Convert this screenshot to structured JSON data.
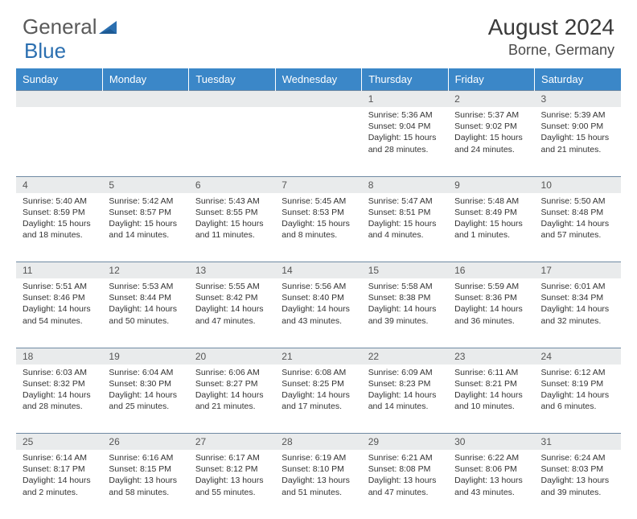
{
  "logo": {
    "part1": "General",
    "part2": "Blue"
  },
  "title": "August 2024",
  "location": "Borne, Germany",
  "dayHeaders": [
    "Sunday",
    "Monday",
    "Tuesday",
    "Wednesday",
    "Thursday",
    "Friday",
    "Saturday"
  ],
  "colors": {
    "header_bg": "#3b87c8",
    "header_text": "#ffffff",
    "daynum_bg": "#e9ebec",
    "border": "#6f8aa3",
    "logo_gray": "#5a5a5a",
    "logo_blue": "#2b6fb0"
  },
  "weeks": [
    [
      null,
      null,
      null,
      null,
      {
        "n": "1",
        "sr": "5:36 AM",
        "ss": "9:04 PM",
        "dl": "15 hours and 28 minutes."
      },
      {
        "n": "2",
        "sr": "5:37 AM",
        "ss": "9:02 PM",
        "dl": "15 hours and 24 minutes."
      },
      {
        "n": "3",
        "sr": "5:39 AM",
        "ss": "9:00 PM",
        "dl": "15 hours and 21 minutes."
      }
    ],
    [
      {
        "n": "4",
        "sr": "5:40 AM",
        "ss": "8:59 PM",
        "dl": "15 hours and 18 minutes."
      },
      {
        "n": "5",
        "sr": "5:42 AM",
        "ss": "8:57 PM",
        "dl": "15 hours and 14 minutes."
      },
      {
        "n": "6",
        "sr": "5:43 AM",
        "ss": "8:55 PM",
        "dl": "15 hours and 11 minutes."
      },
      {
        "n": "7",
        "sr": "5:45 AM",
        "ss": "8:53 PM",
        "dl": "15 hours and 8 minutes."
      },
      {
        "n": "8",
        "sr": "5:47 AM",
        "ss": "8:51 PM",
        "dl": "15 hours and 4 minutes."
      },
      {
        "n": "9",
        "sr": "5:48 AM",
        "ss": "8:49 PM",
        "dl": "15 hours and 1 minutes."
      },
      {
        "n": "10",
        "sr": "5:50 AM",
        "ss": "8:48 PM",
        "dl": "14 hours and 57 minutes."
      }
    ],
    [
      {
        "n": "11",
        "sr": "5:51 AM",
        "ss": "8:46 PM",
        "dl": "14 hours and 54 minutes."
      },
      {
        "n": "12",
        "sr": "5:53 AM",
        "ss": "8:44 PM",
        "dl": "14 hours and 50 minutes."
      },
      {
        "n": "13",
        "sr": "5:55 AM",
        "ss": "8:42 PM",
        "dl": "14 hours and 47 minutes."
      },
      {
        "n": "14",
        "sr": "5:56 AM",
        "ss": "8:40 PM",
        "dl": "14 hours and 43 minutes."
      },
      {
        "n": "15",
        "sr": "5:58 AM",
        "ss": "8:38 PM",
        "dl": "14 hours and 39 minutes."
      },
      {
        "n": "16",
        "sr": "5:59 AM",
        "ss": "8:36 PM",
        "dl": "14 hours and 36 minutes."
      },
      {
        "n": "17",
        "sr": "6:01 AM",
        "ss": "8:34 PM",
        "dl": "14 hours and 32 minutes."
      }
    ],
    [
      {
        "n": "18",
        "sr": "6:03 AM",
        "ss": "8:32 PM",
        "dl": "14 hours and 28 minutes."
      },
      {
        "n": "19",
        "sr": "6:04 AM",
        "ss": "8:30 PM",
        "dl": "14 hours and 25 minutes."
      },
      {
        "n": "20",
        "sr": "6:06 AM",
        "ss": "8:27 PM",
        "dl": "14 hours and 21 minutes."
      },
      {
        "n": "21",
        "sr": "6:08 AM",
        "ss": "8:25 PM",
        "dl": "14 hours and 17 minutes."
      },
      {
        "n": "22",
        "sr": "6:09 AM",
        "ss": "8:23 PM",
        "dl": "14 hours and 14 minutes."
      },
      {
        "n": "23",
        "sr": "6:11 AM",
        "ss": "8:21 PM",
        "dl": "14 hours and 10 minutes."
      },
      {
        "n": "24",
        "sr": "6:12 AM",
        "ss": "8:19 PM",
        "dl": "14 hours and 6 minutes."
      }
    ],
    [
      {
        "n": "25",
        "sr": "6:14 AM",
        "ss": "8:17 PM",
        "dl": "14 hours and 2 minutes."
      },
      {
        "n": "26",
        "sr": "6:16 AM",
        "ss": "8:15 PM",
        "dl": "13 hours and 58 minutes."
      },
      {
        "n": "27",
        "sr": "6:17 AM",
        "ss": "8:12 PM",
        "dl": "13 hours and 55 minutes."
      },
      {
        "n": "28",
        "sr": "6:19 AM",
        "ss": "8:10 PM",
        "dl": "13 hours and 51 minutes."
      },
      {
        "n": "29",
        "sr": "6:21 AM",
        "ss": "8:08 PM",
        "dl": "13 hours and 47 minutes."
      },
      {
        "n": "30",
        "sr": "6:22 AM",
        "ss": "8:06 PM",
        "dl": "13 hours and 43 minutes."
      },
      {
        "n": "31",
        "sr": "6:24 AM",
        "ss": "8:03 PM",
        "dl": "13 hours and 39 minutes."
      }
    ]
  ],
  "labels": {
    "sunrise": "Sunrise: ",
    "sunset": "Sunset: ",
    "daylight": "Daylight: "
  }
}
